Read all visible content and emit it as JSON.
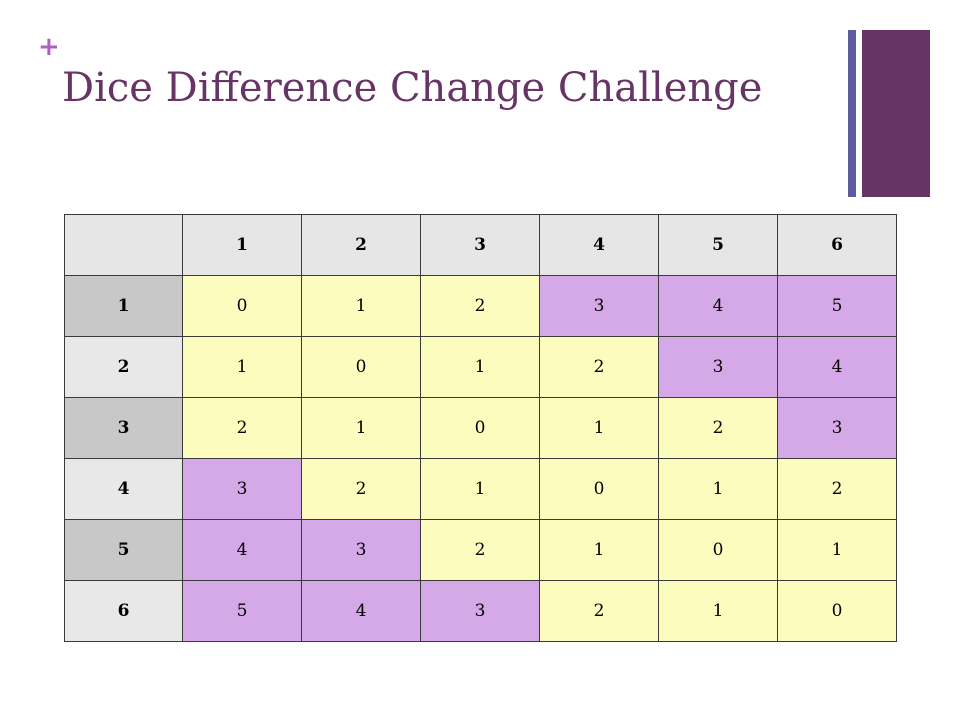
{
  "slide": {
    "bullet": "+",
    "title": "Dice Difference Change Challenge"
  },
  "colors": {
    "title": "#673466",
    "accent_plus": "#b05fc0",
    "bar_thin": "#5b5b9e",
    "bar_thick": "#673466",
    "header_fill": "#e6e6e6",
    "row_header_dark": "#c8c8c8",
    "row_header_light": "#e8e8e8",
    "cell_yellow": "#fdfcbf",
    "cell_purple": "#d5a8e8"
  },
  "table": {
    "corner": "",
    "column_headers": [
      "1",
      "2",
      "3",
      "4",
      "5",
      "6"
    ],
    "rows": [
      {
        "header": "1",
        "cells": [
          {
            "value": "0",
            "fill": "yellow"
          },
          {
            "value": "1",
            "fill": "yellow"
          },
          {
            "value": "2",
            "fill": "yellow"
          },
          {
            "value": "3",
            "fill": "purple"
          },
          {
            "value": "4",
            "fill": "purple"
          },
          {
            "value": "5",
            "fill": "purple"
          }
        ]
      },
      {
        "header": "2",
        "cells": [
          {
            "value": "1",
            "fill": "yellow"
          },
          {
            "value": "0",
            "fill": "yellow"
          },
          {
            "value": "1",
            "fill": "yellow"
          },
          {
            "value": "2",
            "fill": "yellow"
          },
          {
            "value": "3",
            "fill": "purple"
          },
          {
            "value": "4",
            "fill": "purple"
          }
        ]
      },
      {
        "header": "3",
        "cells": [
          {
            "value": "2",
            "fill": "yellow"
          },
          {
            "value": "1",
            "fill": "yellow"
          },
          {
            "value": "0",
            "fill": "yellow"
          },
          {
            "value": "1",
            "fill": "yellow"
          },
          {
            "value": "2",
            "fill": "yellow"
          },
          {
            "value": "3",
            "fill": "purple"
          }
        ]
      },
      {
        "header": "4",
        "cells": [
          {
            "value": "3",
            "fill": "purple"
          },
          {
            "value": "2",
            "fill": "yellow"
          },
          {
            "value": "1",
            "fill": "yellow"
          },
          {
            "value": "0",
            "fill": "yellow"
          },
          {
            "value": "1",
            "fill": "yellow"
          },
          {
            "value": "2",
            "fill": "yellow"
          }
        ]
      },
      {
        "header": "5",
        "cells": [
          {
            "value": "4",
            "fill": "purple"
          },
          {
            "value": "3",
            "fill": "purple"
          },
          {
            "value": "2",
            "fill": "yellow"
          },
          {
            "value": "1",
            "fill": "yellow"
          },
          {
            "value": "0",
            "fill": "yellow"
          },
          {
            "value": "1",
            "fill": "yellow"
          }
        ]
      },
      {
        "header": "6",
        "cells": [
          {
            "value": "5",
            "fill": "purple"
          },
          {
            "value": "4",
            "fill": "purple"
          },
          {
            "value": "3",
            "fill": "purple"
          },
          {
            "value": "2",
            "fill": "yellow"
          },
          {
            "value": "1",
            "fill": "yellow"
          },
          {
            "value": "0",
            "fill": "yellow"
          }
        ]
      }
    ]
  }
}
